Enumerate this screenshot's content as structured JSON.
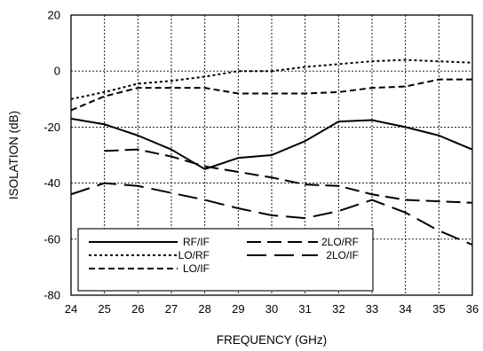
{
  "chart_data": {
    "type": "line",
    "title": "",
    "xlabel": "FREQUENCY (GHz)",
    "ylabel": "ISOLATION (dB)",
    "xlim": [
      24,
      36
    ],
    "ylim": [
      -80,
      20
    ],
    "xticks": [
      24,
      25,
      26,
      27,
      28,
      29,
      30,
      31,
      32,
      33,
      34,
      35,
      36
    ],
    "yticks": [
      -80,
      -60,
      -40,
      -20,
      0,
      20
    ],
    "grid": true,
    "legend_placement": "bottom-left",
    "x": [
      24,
      25,
      26,
      27,
      28,
      29,
      30,
      31,
      32,
      33,
      34,
      35,
      36
    ],
    "series": [
      {
        "name": "RF/IF",
        "dash": "solid",
        "values": [
          -17,
          -19,
          -23,
          -28,
          -35,
          -31,
          -30,
          -25,
          -18,
          -17.5,
          -20,
          -23,
          -28
        ]
      },
      {
        "name": "LO/RF",
        "dash": "dotted",
        "values": [
          -10,
          -7.5,
          -4.5,
          -3.5,
          -2,
          0,
          0,
          1.5,
          2.5,
          3.5,
          4,
          3.5,
          3
        ]
      },
      {
        "name": "LO/IF",
        "dash": "dashed",
        "values": [
          -14,
          -9,
          -6,
          -6,
          -6,
          -8,
          -8,
          -8,
          -7.5,
          -6,
          -5.5,
          -3,
          -3
        ]
      },
      {
        "name": "2LO/RF",
        "dash": "long-dash",
        "values": [
          null,
          -28.5,
          -28,
          -30.5,
          -34,
          -36,
          -38,
          -40.5,
          -41,
          -44,
          -46,
          -46.5,
          -47
        ]
      },
      {
        "name": "2LO/IF",
        "dash": "longer-dash",
        "values": [
          -44,
          -40,
          -41,
          -43.5,
          -46,
          -49,
          -51.5,
          -52.5,
          -50,
          -46,
          -50.5,
          -57,
          -62
        ]
      }
    ]
  }
}
